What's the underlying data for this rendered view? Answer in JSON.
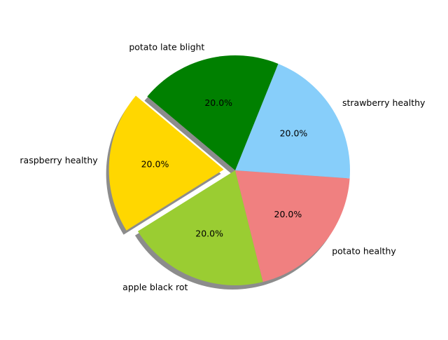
{
  "chart_data": {
    "type": "pie",
    "start_angle_deg": 140,
    "direction": "counterclockwise",
    "shadow": true,
    "slices": [
      {
        "label": "raspberry healthy",
        "value": 20.0,
        "pct_label": "20.0%",
        "color": "#FFD700",
        "exploded": true
      },
      {
        "label": "apple black rot",
        "value": 20.0,
        "pct_label": "20.0%",
        "color": "#9ACD32",
        "exploded": false
      },
      {
        "label": "potato healthy",
        "value": 20.0,
        "pct_label": "20.0%",
        "color": "#F08080",
        "exploded": false
      },
      {
        "label": "strawberry healthy",
        "value": 20.0,
        "pct_label": "20.0%",
        "color": "#87CEFA",
        "exploded": false
      },
      {
        "label": "potato late blight",
        "value": 20.0,
        "pct_label": "20.0%",
        "color": "#008000",
        "exploded": false
      }
    ]
  }
}
